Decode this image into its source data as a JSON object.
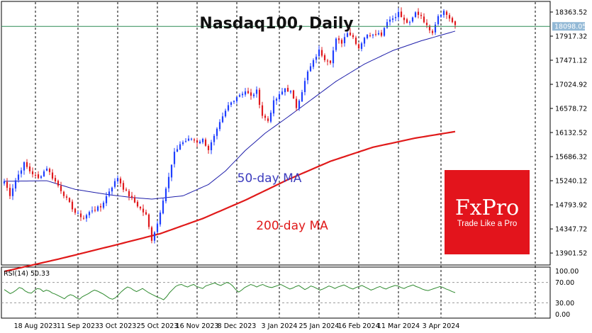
{
  "chart_data": [
    {
      "type": "candlestick",
      "title": "Nasdaq100, Daily",
      "ylim": [
        13680,
        18560
      ],
      "y_ticks": [
        "18363.52",
        "17917.32",
        "17471.12",
        "17024.92",
        "16578.72",
        "16132.52",
        "15686.32",
        "15240.12",
        "14793.92",
        "14347.72",
        "13901.52"
      ],
      "x_ticks": [
        "18 Aug 2023",
        "11 Sep 2023",
        "3 Oct 2023",
        "25 Oct 2023",
        "16 Nov 2023",
        "8 Dec 2023",
        "3 Jan 2024",
        "25 Jan 2024",
        "16 Feb 2024",
        "11 Mar 2024",
        "3 Apr 2024"
      ],
      "current_price": "18098.05",
      "grid": "vertical dashed",
      "colors": {
        "up": "#1f3fff",
        "down": "#e0191d",
        "ma50": "#1e1eaa",
        "ma200": "#e01a1a",
        "price_line": "#2e8b57",
        "price_tag": "#93b9d6"
      },
      "close_anchors": [
        [
          0,
          15230
        ],
        [
          2,
          14980
        ],
        [
          4,
          15250
        ],
        [
          7,
          15560
        ],
        [
          9,
          15420
        ],
        [
          12,
          15280
        ],
        [
          15,
          15480
        ],
        [
          17,
          15300
        ],
        [
          19,
          15150
        ],
        [
          22,
          14900
        ],
        [
          25,
          14650
        ],
        [
          28,
          14550
        ],
        [
          31,
          14700
        ],
        [
          34,
          14750
        ],
        [
          37,
          15050
        ],
        [
          40,
          15300
        ],
        [
          42,
          15100
        ],
        [
          45,
          14900
        ],
        [
          47,
          14780
        ],
        [
          50,
          14600
        ],
        [
          52,
          14150
        ],
        [
          54,
          14450
        ],
        [
          56,
          14900
        ],
        [
          58,
          15300
        ],
        [
          60,
          15750
        ],
        [
          62,
          15920
        ],
        [
          64,
          15980
        ],
        [
          66,
          16020
        ],
        [
          68,
          15960
        ],
        [
          70,
          16000
        ],
        [
          72,
          15820
        ],
        [
          74,
          16050
        ],
        [
          76,
          16300
        ],
        [
          79,
          16630
        ],
        [
          82,
          16800
        ],
        [
          85,
          16900
        ],
        [
          87,
          16800
        ],
        [
          89,
          16900
        ],
        [
          91,
          16450
        ],
        [
          93,
          16350
        ],
        [
          95,
          16700
        ],
        [
          97,
          16820
        ],
        [
          99,
          16950
        ],
        [
          101,
          16880
        ],
        [
          103,
          16600
        ],
        [
          105,
          16900
        ],
        [
          107,
          17250
        ],
        [
          109,
          17450
        ],
        [
          111,
          17650
        ],
        [
          113,
          17500
        ],
        [
          115,
          17450
        ],
        [
          117,
          17850
        ],
        [
          119,
          17800
        ],
        [
          121,
          18000
        ],
        [
          123,
          17900
        ],
        [
          125,
          17700
        ],
        [
          127,
          17900
        ],
        [
          129,
          17950
        ],
        [
          131,
          17980
        ],
        [
          133,
          17950
        ],
        [
          135,
          18200
        ],
        [
          137,
          18250
        ],
        [
          139,
          18350
        ],
        [
          141,
          18200
        ],
        [
          143,
          18150
        ],
        [
          145,
          18350
        ],
        [
          147,
          18300
        ],
        [
          149,
          18100
        ],
        [
          151,
          18000
        ],
        [
          153,
          18300
        ],
        [
          155,
          18380
        ],
        [
          157,
          18250
        ],
        [
          159,
          18098
        ]
      ],
      "ma50_anchors": [
        [
          0,
          15230
        ],
        [
          15,
          15240
        ],
        [
          25,
          15080
        ],
        [
          37,
          14980
        ],
        [
          45,
          14930
        ],
        [
          52,
          14900
        ],
        [
          63,
          14960
        ],
        [
          72,
          15170
        ],
        [
          78,
          15420
        ],
        [
          85,
          15800
        ],
        [
          92,
          16120
        ],
        [
          100,
          16420
        ],
        [
          108,
          16730
        ],
        [
          117,
          17080
        ],
        [
          127,
          17400
        ],
        [
          137,
          17650
        ],
        [
          147,
          17830
        ],
        [
          155,
          17950
        ],
        [
          159,
          18010
        ]
      ],
      "ma200_anchors": [
        [
          0,
          13560
        ],
        [
          20,
          13800
        ],
        [
          40,
          14060
        ],
        [
          55,
          14260
        ],
        [
          70,
          14540
        ],
        [
          85,
          14880
        ],
        [
          100,
          15260
        ],
        [
          115,
          15600
        ],
        [
          130,
          15860
        ],
        [
          145,
          16030
        ],
        [
          159,
          16150
        ]
      ]
    },
    {
      "type": "line",
      "name": "RSI(14) 50.33",
      "ylim": [
        0,
        100
      ],
      "y_ticks": [
        "100.00",
        "70.00",
        "30.00",
        "0.00"
      ],
      "levels": [
        70,
        30
      ],
      "values": [
        56,
        52,
        48,
        51,
        55,
        60,
        58,
        53,
        50,
        49,
        54,
        58,
        57,
        52,
        55,
        53,
        49,
        47,
        44,
        41,
        38,
        43,
        46,
        44,
        40,
        37,
        42,
        45,
        48,
        52,
        55,
        53,
        50,
        47,
        43,
        39,
        37,
        40,
        46,
        52,
        57,
        61,
        59,
        55,
        52,
        55,
        58,
        54,
        50,
        47,
        44,
        41,
        39,
        36,
        42,
        50,
        56,
        62,
        65,
        66,
        63,
        61,
        64,
        66,
        62,
        60,
        58,
        63,
        65,
        67,
        69,
        66,
        64,
        67,
        70,
        68,
        63,
        56,
        51,
        55,
        60,
        63,
        66,
        64,
        61,
        64,
        66,
        63,
        61,
        60,
        62,
        64,
        66,
        63,
        60,
        57,
        59,
        62,
        64,
        60,
        56,
        59,
        63,
        61,
        58,
        55,
        57,
        60,
        63,
        61,
        58,
        61,
        63,
        65,
        62,
        59,
        57,
        60,
        62,
        64,
        61,
        58,
        55,
        57,
        60,
        62,
        59,
        57,
        60,
        62,
        64,
        63,
        60,
        58,
        61,
        63,
        65,
        62,
        60,
        57,
        55,
        54,
        56,
        58,
        60,
        62,
        60,
        57,
        55,
        52,
        50
      ]
    }
  ],
  "annotations": {
    "ma50": "50-day MA",
    "ma200": "200-day MA"
  },
  "price_tag": "18098.05",
  "rsi_label": "RSI(14) 50.33",
  "logo": {
    "brand": "FxPro",
    "tagline": "Trade Like a Pro",
    "color": "#e3141c"
  }
}
